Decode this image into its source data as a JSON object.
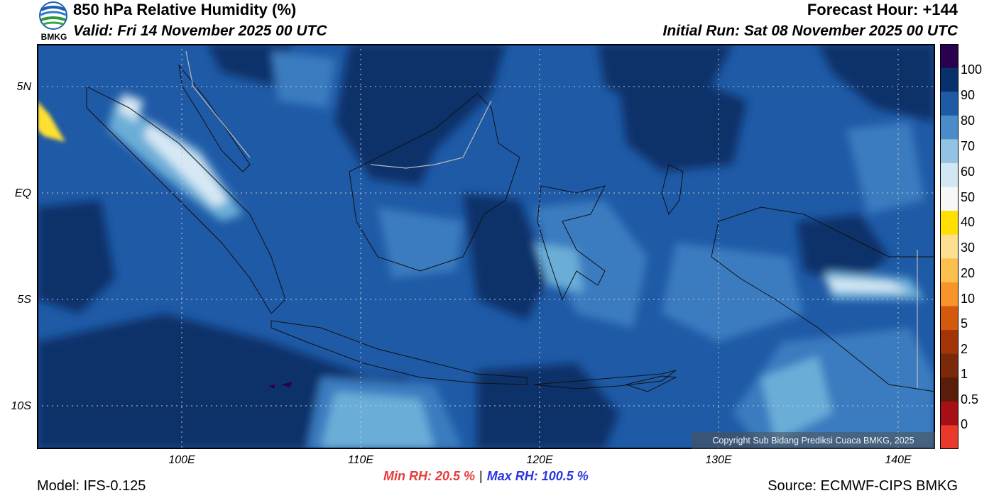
{
  "header": {
    "title": "850 hPa Relative Humidity (%)",
    "valid": "Valid: Fri 14 November 2025 00 UTC",
    "forecast_hour": "Forecast Hour: +144",
    "initial_run": "Initial Run: Sat 08 November 2025 00 UTC",
    "logo_text": "BMKG"
  },
  "map": {
    "lat_labels": [
      "5N",
      "EQ",
      "5S",
      "10S"
    ],
    "lon_labels": [
      "100E",
      "110E",
      "120E",
      "130E",
      "140E"
    ],
    "copyright": "Copyright Sub Bidang Prediksi Cuaca BMKG, 2025",
    "colors": {
      "darkest": "#08306b",
      "dark": "#1f5aa6",
      "mid": "#3a7cc0",
      "light": "#6aaed8",
      "lighter": "#9ecae6",
      "pale": "#d6e8f4",
      "yellow": "#ffe033",
      "purple": "#2b004f",
      "coast": "#111111",
      "border": "#bbbbbb"
    }
  },
  "colorbar": {
    "labels": [
      "100",
      "90",
      "80",
      "70",
      "60",
      "50",
      "40",
      "30",
      "20",
      "10",
      "5",
      "2",
      "1",
      "0.5",
      "0"
    ],
    "colors": [
      "#2b004f",
      "#08306b",
      "#1f5aa6",
      "#4a8cc9",
      "#93c3e4",
      "#d2e6f3",
      "#f7f7f7",
      "#ffe000",
      "#fde08f",
      "#fdc04f",
      "#f7952b",
      "#d35a0c",
      "#a23508",
      "#7a2a0a",
      "#5b1d0b",
      "#a50f15",
      "#e8392a"
    ]
  },
  "footer": {
    "min_rh": "Min RH:  20.5 %",
    "separator": "|",
    "max_rh": "Max RH: 100.5 %",
    "model": "Model: IFS-0.125",
    "source": "Source: ECMWF-CIPS BMKG"
  }
}
